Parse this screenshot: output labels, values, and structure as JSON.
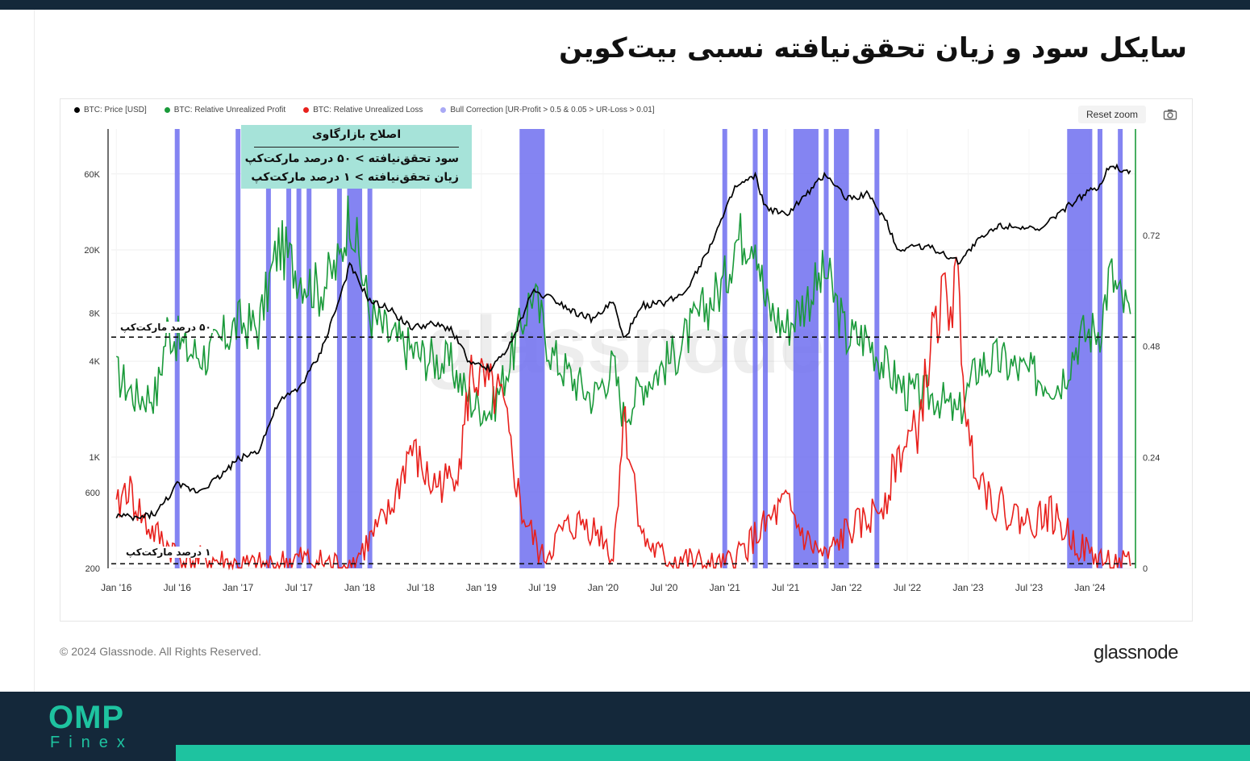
{
  "page": {
    "title": "سایکل سود و زیان تحقق‌نیافته نسبی بیت‌کوین",
    "copyright": "© 2024 Glassnode. All Rights Reserved.",
    "brand": "glassnode",
    "watermark": "glassnode",
    "footer_logo_top": "OMP",
    "footer_logo_bottom": "Finex"
  },
  "toolbar": {
    "reset_zoom": "Reset zoom",
    "camera_icon": "camera-icon"
  },
  "annotation": {
    "title": "اصلاح بازارگاوی",
    "line1": "سود تحقق‌نیافته > ۵۰ درصد مارکت‌کپ",
    "line2": "زیان تحقق‌نیافته > ۱ درصد مارکت‌کپ",
    "ref_50": "۵۰ درصد مارکت‌کپ",
    "ref_1": "۱ درصد مارکت‌کپ"
  },
  "colors": {
    "price": "#000000",
    "profit": "#1a9a3a",
    "loss": "#e8201c",
    "correction": "#6f6ff0",
    "header": "#14283a",
    "accent": "#1ec3a0"
  },
  "chart_data": {
    "type": "line",
    "legend_position": "top-left",
    "legend": [
      "BTC: Price [USD]",
      "BTC: Relative Unrealized Profit",
      "BTC: Relative Unrealized Loss",
      "Bull Correction [UR-Profit > 0.5 & 0.05 > UR-Loss > 0.01]"
    ],
    "x_ticks": [
      "Jan '16",
      "Jul '16",
      "Jan '17",
      "Jul '17",
      "Jan '18",
      "Jul '18",
      "Jan '19",
      "Jul '19",
      "Jan '20",
      "Jul '20",
      "Jan '21",
      "Jul '21",
      "Jan '22",
      "Jul '22",
      "Jan '23",
      "Jul '23",
      "Jan '24"
    ],
    "x_range": [
      "2016-01",
      "2024-05"
    ],
    "y_left": {
      "scale": "log",
      "ticks": [
        "200",
        "600",
        "1K",
        "4K",
        "8K",
        "20K",
        "60K"
      ],
      "tick_values": [
        200,
        600,
        1000,
        4000,
        8000,
        20000,
        60000
      ],
      "range": [
        200,
        115000
      ]
    },
    "y_right": {
      "scale": "linear",
      "ticks": [
        "0",
        "0.24",
        "0.48",
        "0.72"
      ],
      "tick_values": [
        0,
        0.24,
        0.48,
        0.72
      ],
      "range": [
        0,
        0.95
      ]
    },
    "reference_lines": [
      {
        "axis": "right",
        "value": 0.5
      },
      {
        "axis": "right",
        "value": 0.01
      }
    ],
    "series": [
      {
        "name": "BTC: Price [USD]",
        "axis": "left",
        "x": [
          "2016-01",
          "2016-03",
          "2016-05",
          "2016-07",
          "2016-09",
          "2016-11",
          "2017-01",
          "2017-03",
          "2017-05",
          "2017-07",
          "2017-09",
          "2017-11",
          "2017-12",
          "2018-02",
          "2018-04",
          "2018-06",
          "2018-08",
          "2018-10",
          "2018-12",
          "2019-02",
          "2019-04",
          "2019-06",
          "2019-08",
          "2019-10",
          "2019-12",
          "2020-02",
          "2020-03",
          "2020-05",
          "2020-07",
          "2020-09",
          "2020-11",
          "2021-01",
          "2021-02",
          "2021-04",
          "2021-05",
          "2021-07",
          "2021-09",
          "2021-11",
          "2022-01",
          "2022-03",
          "2022-05",
          "2022-06",
          "2022-08",
          "2022-10",
          "2022-12",
          "2023-02",
          "2023-04",
          "2023-06",
          "2023-08",
          "2023-10",
          "2023-12",
          "2024-02",
          "2024-03",
          "2024-04",
          "2024-05"
        ],
        "values": [
          430,
          410,
          450,
          670,
          610,
          740,
          970,
          1100,
          2200,
          2700,
          4300,
          9800,
          16000,
          9500,
          8500,
          6500,
          6800,
          6400,
          3800,
          3600,
          5200,
          11000,
          10000,
          8300,
          7300,
          9500,
          5500,
          9000,
          9300,
          10800,
          18000,
          34000,
          49000,
          58000,
          37000,
          33000,
          44000,
          60000,
          42000,
          45000,
          30000,
          20000,
          21500,
          20000,
          16800,
          23000,
          28500,
          28500,
          26000,
          34500,
          42500,
          51000,
          70000,
          64000,
          63000
        ]
      },
      {
        "name": "BTC: Relative Unrealized Profit",
        "axis": "right",
        "x": [
          "2016-01",
          "2016-03",
          "2016-05",
          "2016-06",
          "2016-08",
          "2016-10",
          "2017-01",
          "2017-03",
          "2017-05",
          "2017-07",
          "2017-09",
          "2017-11",
          "2017-12",
          "2018-02",
          "2018-04",
          "2018-07",
          "2018-10",
          "2018-12",
          "2019-02",
          "2019-04",
          "2019-06",
          "2019-08",
          "2019-10",
          "2019-12",
          "2020-02",
          "2020-03",
          "2020-05",
          "2020-08",
          "2020-11",
          "2021-01",
          "2021-02",
          "2021-04",
          "2021-05",
          "2021-07",
          "2021-09",
          "2021-11",
          "2022-01",
          "2022-03",
          "2022-05",
          "2022-07",
          "2022-10",
          "2022-12",
          "2023-02",
          "2023-04",
          "2023-07",
          "2023-10",
          "2023-12",
          "2024-02",
          "2024-03",
          "2024-04",
          "2024-05"
        ],
        "values": [
          0.42,
          0.37,
          0.38,
          0.52,
          0.47,
          0.46,
          0.53,
          0.52,
          0.7,
          0.64,
          0.6,
          0.66,
          0.78,
          0.55,
          0.5,
          0.46,
          0.44,
          0.36,
          0.34,
          0.46,
          0.6,
          0.46,
          0.41,
          0.37,
          0.44,
          0.33,
          0.4,
          0.46,
          0.56,
          0.62,
          0.71,
          0.73,
          0.57,
          0.52,
          0.58,
          0.64,
          0.5,
          0.5,
          0.43,
          0.38,
          0.37,
          0.33,
          0.44,
          0.45,
          0.42,
          0.4,
          0.5,
          0.52,
          0.64,
          0.58,
          0.55
        ]
      },
      {
        "name": "BTC: Relative Unrealized Loss",
        "axis": "right",
        "x": [
          "2016-01",
          "2016-02",
          "2016-04",
          "2016-06",
          "2016-08",
          "2016-10",
          "2017-01",
          "2017-04",
          "2017-07",
          "2017-10",
          "2017-12",
          "2018-02",
          "2018-04",
          "2018-06",
          "2018-08",
          "2018-10",
          "2018-11",
          "2018-12",
          "2019-01",
          "2019-03",
          "2019-05",
          "2019-07",
          "2019-09",
          "2019-11",
          "2020-01",
          "2020-02",
          "2020-03",
          "2020-05",
          "2020-07",
          "2020-09",
          "2020-11",
          "2021-01",
          "2021-05",
          "2021-07",
          "2021-09",
          "2021-11",
          "2022-01",
          "2022-03",
          "2022-05",
          "2022-06",
          "2022-08",
          "2022-10",
          "2022-12",
          "2023-01",
          "2023-03",
          "2023-05",
          "2023-07",
          "2023-09",
          "2023-11",
          "2024-01",
          "2024-03",
          "2024-05"
        ],
        "values": [
          0.12,
          0.18,
          0.09,
          0.05,
          0.01,
          0.02,
          0.004,
          0.003,
          0.02,
          0.01,
          0.003,
          0.06,
          0.12,
          0.26,
          0.18,
          0.19,
          0.25,
          0.42,
          0.4,
          0.36,
          0.12,
          0.02,
          0.08,
          0.1,
          0.07,
          0.02,
          0.33,
          0.06,
          0.02,
          0.02,
          0.005,
          0.002,
          0.09,
          0.14,
          0.06,
          0.02,
          0.08,
          0.1,
          0.16,
          0.24,
          0.3,
          0.56,
          0.6,
          0.28,
          0.16,
          0.12,
          0.1,
          0.12,
          0.07,
          0.03,
          0.01,
          0.005
        ]
      },
      {
        "name": "Bull Correction [UR-Profit > 0.5 & 0.05 > UR-Loss > 0.01]",
        "type": "bands",
        "ranges": [
          [
            "2016-07",
            "2016-07"
          ],
          [
            "2017-01",
            "2017-01"
          ],
          [
            "2017-04",
            "2017-04"
          ],
          [
            "2017-06",
            "2017-06"
          ],
          [
            "2017-07",
            "2017-07"
          ],
          [
            "2017-08",
            "2017-08"
          ],
          [
            "2017-11",
            "2017-11"
          ],
          [
            "2017-12",
            "2018-01"
          ],
          [
            "2018-02",
            "2018-02"
          ],
          [
            "2019-05",
            "2019-07"
          ],
          [
            "2021-01",
            "2021-01"
          ],
          [
            "2021-04",
            "2021-04"
          ],
          [
            "2021-05",
            "2021-05"
          ],
          [
            "2021-08",
            "2021-10"
          ],
          [
            "2021-11",
            "2021-11"
          ],
          [
            "2021-12",
            "2022-01"
          ],
          [
            "2022-04",
            "2022-04"
          ],
          [
            "2023-11",
            "2024-01"
          ],
          [
            "2024-02",
            "2024-02"
          ],
          [
            "2024-04",
            "2024-04"
          ]
        ]
      }
    ]
  }
}
